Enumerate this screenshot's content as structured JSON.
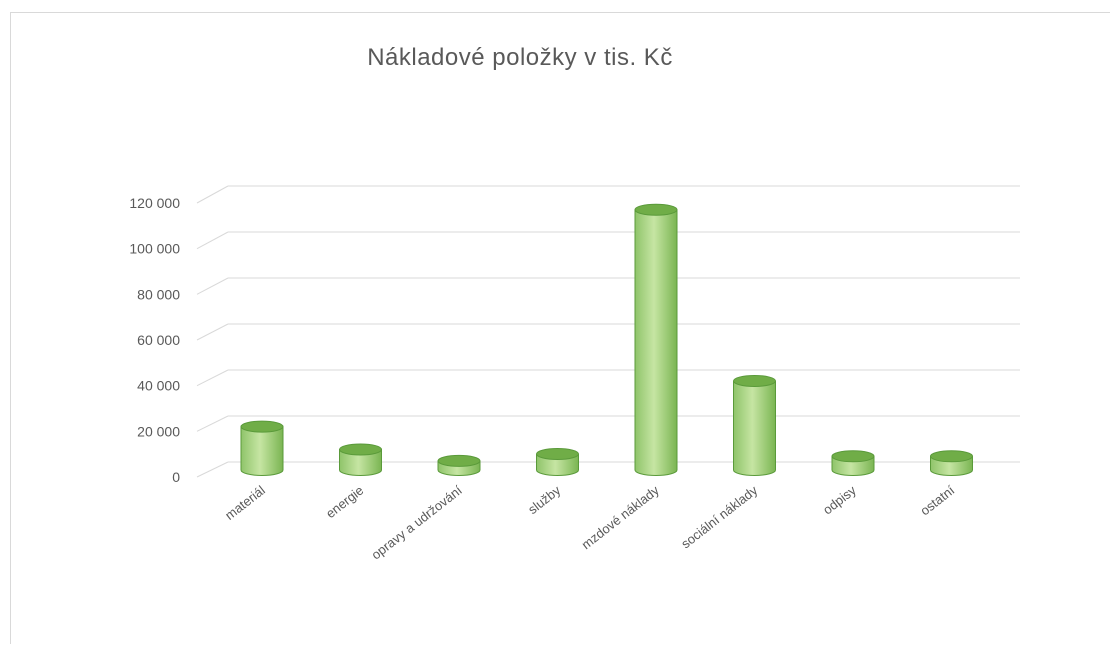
{
  "chart_data": {
    "type": "bar",
    "title": "Nákladové položky v tis. Kč",
    "categories": [
      "materiál",
      "energie",
      "opravy a udržování",
      "služby",
      "mzdové náklady",
      "sociální náklady",
      "odpisy",
      "ostatní"
    ],
    "series": [
      {
        "values": [
          19000,
          9000,
          4000,
          7000,
          114000,
          39000,
          6000,
          6000
        ]
      }
    ],
    "ylim": [
      0,
      120000
    ],
    "yticks": [
      "0",
      "20 000",
      "40 000",
      "60 000",
      "80 000",
      "100 000",
      "120 000"
    ],
    "ytick_values": [
      0,
      20000,
      40000,
      60000,
      80000,
      100000,
      120000
    ],
    "grid": true,
    "legend": "none",
    "colors": {
      "bar_light": "#c6e5a3",
      "bar_mid": "#a9d18e",
      "bar_dark": "#70ad47",
      "bar_edge": "#5a9a3a",
      "grid": "#d9d9d9",
      "text": "#595959"
    }
  }
}
